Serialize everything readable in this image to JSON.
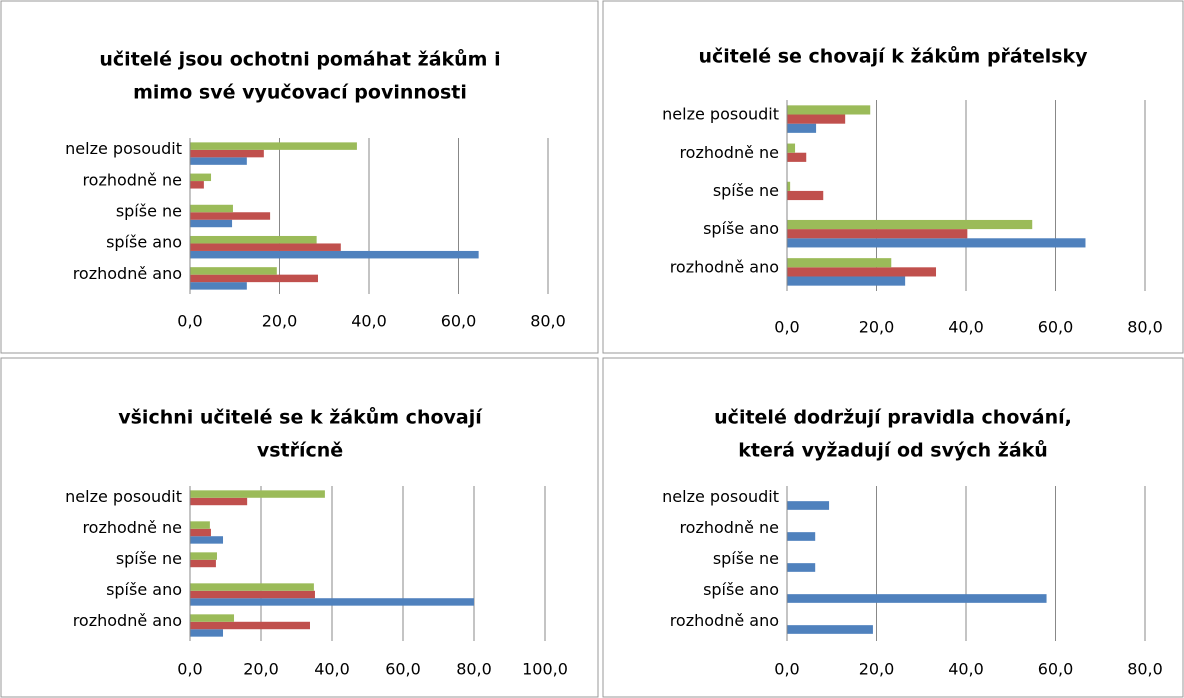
{
  "chart_data": [
    {
      "type": "bar",
      "orientation": "horizontal",
      "title": [
        "učitelé jsou ochotni pomáhat žákům i",
        "mimo své vyučovací povinnosti"
      ],
      "categories": [
        "rozhodně ano",
        "spíše ano",
        "spíše ne",
        "rozhodně ne",
        "nelze posoudit"
      ],
      "series": [
        {
          "color": "#4f81bd",
          "values": [
            12.7,
            64.5,
            9.4,
            0,
            12.7
          ]
        },
        {
          "color": "#c0504d",
          "values": [
            28.6,
            33.7,
            17.9,
            3.1,
            16.5
          ]
        },
        {
          "color": "#9bbb59",
          "values": [
            19.4,
            28.3,
            9.6,
            4.7,
            37.3
          ]
        }
      ],
      "xlim": [
        0,
        80
      ],
      "xticks": [
        {
          "value": 0,
          "label": "0,0"
        },
        {
          "value": 20,
          "label": "20,0"
        },
        {
          "value": 40,
          "label": "40,0"
        },
        {
          "value": 60,
          "label": "60,0"
        },
        {
          "value": 80,
          "label": "80,0"
        }
      ],
      "grid": true
    },
    {
      "type": "bar",
      "orientation": "horizontal",
      "title": [
        "učitelé se chovají k žákům přátelsky"
      ],
      "categories": [
        "rozhodně ano",
        "spíše ano",
        "spíše ne",
        "rozhodně ne",
        "nelze posoudit"
      ],
      "series": [
        {
          "color": "#4f81bd",
          "values": [
            26.4,
            66.7,
            0,
            0,
            6.5
          ]
        },
        {
          "color": "#c0504d",
          "values": [
            33.3,
            40.3,
            8.1,
            4.3,
            13.0
          ]
        },
        {
          "color": "#9bbb59",
          "values": [
            23.3,
            54.8,
            0.7,
            1.8,
            18.6
          ]
        }
      ],
      "xlim": [
        0,
        80
      ],
      "xticks": [
        {
          "value": 0,
          "label": "0,0"
        },
        {
          "value": 20,
          "label": "20,0"
        },
        {
          "value": 40,
          "label": "40,0"
        },
        {
          "value": 60,
          "label": "60,0"
        },
        {
          "value": 80,
          "label": "80,0"
        }
      ],
      "grid": true
    },
    {
      "type": "bar",
      "orientation": "horizontal",
      "title": [
        "všichni učitelé se k žákům chovají",
        "vstřícně"
      ],
      "categories": [
        "rozhodně ano",
        "spíše ano",
        "spíše ne",
        "rozhodně ne",
        "nelze posoudit"
      ],
      "series": [
        {
          "color": "#4f81bd",
          "values": [
            9.3,
            80.0,
            0,
            9.3,
            0
          ]
        },
        {
          "color": "#c0504d",
          "values": [
            33.8,
            35.2,
            7.3,
            5.9,
            16.1
          ]
        },
        {
          "color": "#9bbb59",
          "values": [
            12.4,
            34.9,
            7.6,
            5.6,
            38.0
          ]
        }
      ],
      "xlim": [
        0,
        100
      ],
      "xticks": [
        {
          "value": 0,
          "label": "0,0"
        },
        {
          "value": 20,
          "label": "20,0"
        },
        {
          "value": 40,
          "label": "40,0"
        },
        {
          "value": 60,
          "label": "60,0"
        },
        {
          "value": 80,
          "label": "80,0"
        },
        {
          "value": 100,
          "label": "100,0"
        }
      ],
      "grid": true
    },
    {
      "type": "bar",
      "orientation": "horizontal",
      "title": [
        "učitelé dodržují pravidla chování,",
        "která vyžadují od svých žáků"
      ],
      "categories": [
        "rozhodně ano",
        "spíše ano",
        "spíše ne",
        "rozhodně ne",
        "nelze posoudit"
      ],
      "series": [
        {
          "color": "#4f81bd",
          "values": [
            19.2,
            58.0,
            6.3,
            6.3,
            9.4
          ]
        }
      ],
      "xlim": [
        0,
        80
      ],
      "xticks": [
        {
          "value": 0,
          "label": "0,0"
        },
        {
          "value": 20,
          "label": "20,0"
        },
        {
          "value": 40,
          "label": "40,0"
        },
        {
          "value": 60,
          "label": "60,0"
        },
        {
          "value": 80,
          "label": "80,0"
        }
      ],
      "grid": true
    }
  ]
}
